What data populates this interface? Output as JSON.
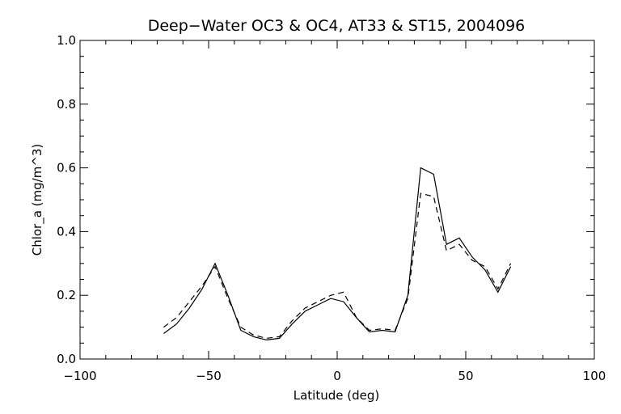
{
  "chart_data": {
    "type": "line",
    "title": "Deep−Water OC3 & OC4, AT33 & ST15, 2004096",
    "xlabel": "Latitude (deg)",
    "ylabel": "Chlor_a (mg/m^3)",
    "xlim": [
      -100,
      100
    ],
    "ylim": [
      0.0,
      1.0
    ],
    "x_ticks": [
      "−100",
      "−50",
      "0",
      "50",
      "100"
    ],
    "y_ticks": [
      "0.0",
      "0.2",
      "0.4",
      "0.6",
      "0.8",
      "1.0"
    ],
    "grid": false,
    "series": [
      {
        "style": "solid",
        "color": "#000000",
        "x": [
          -67.5,
          -62.5,
          -57.5,
          -52.5,
          -47.5,
          -42.5,
          -37.5,
          -32.5,
          -27.5,
          -22.5,
          -17.5,
          -12.5,
          -7.5,
          -2.5,
          2.5,
          7.5,
          12.5,
          17.5,
          22.5,
          27.5,
          32.5,
          37.5,
          42.5,
          47.5,
          52.5,
          57.5,
          62.5,
          67.5
        ],
        "y": [
          0.08,
          0.11,
          0.16,
          0.22,
          0.3,
          0.2,
          0.09,
          0.07,
          0.06,
          0.065,
          0.11,
          0.15,
          0.17,
          0.19,
          0.18,
          0.13,
          0.085,
          0.09,
          0.085,
          0.2,
          0.6,
          0.58,
          0.36,
          0.38,
          0.32,
          0.28,
          0.21,
          0.29
        ]
      },
      {
        "style": "dashed",
        "color": "#000000",
        "x": [
          -67.5,
          -62.5,
          -57.5,
          -52.5,
          -47.5,
          -42.5,
          -37.5,
          -32.5,
          -27.5,
          -22.5,
          -17.5,
          -12.5,
          -7.5,
          -2.5,
          2.5,
          7.5,
          12.5,
          17.5,
          22.5,
          27.5,
          32.5,
          37.5,
          42.5,
          47.5,
          52.5,
          57.5,
          62.5,
          67.5
        ],
        "y": [
          0.1,
          0.13,
          0.18,
          0.23,
          0.29,
          0.19,
          0.1,
          0.075,
          0.065,
          0.07,
          0.12,
          0.16,
          0.18,
          0.2,
          0.21,
          0.13,
          0.09,
          0.095,
          0.09,
          0.19,
          0.52,
          0.51,
          0.34,
          0.36,
          0.31,
          0.29,
          0.22,
          0.3
        ]
      }
    ]
  }
}
